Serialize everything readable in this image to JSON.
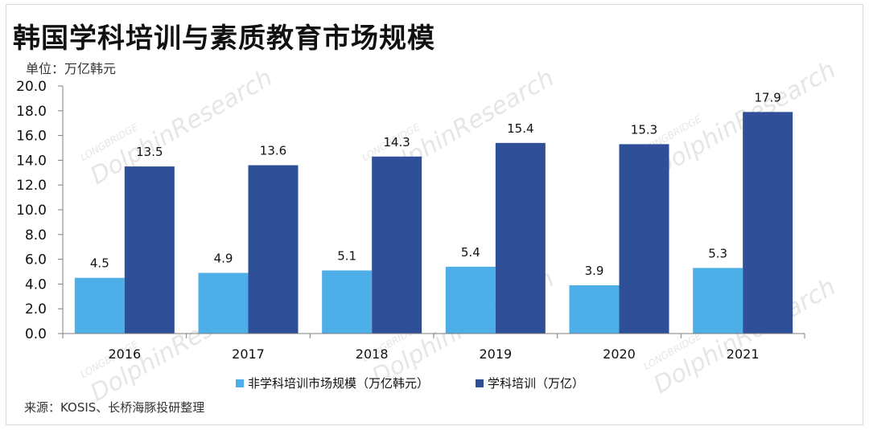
{
  "title": "韩国学科培训与素质教育市场规模",
  "unit_label": "单位：万亿韩元",
  "source": "来源：KOSIS、长桥海豚投研整理",
  "watermark": {
    "brand": "DolphinResearch",
    "sub": "LONGBRIDGE"
  },
  "colors": {
    "light": "#4eaee8",
    "dark": "#2f4f99",
    "axis": "#7f7f7f"
  },
  "chart_data": {
    "type": "bar",
    "title": "韩国学科培训与素质教育市场规模",
    "categories": [
      "2016",
      "2017",
      "2018",
      "2019",
      "2020",
      "2021"
    ],
    "series": [
      {
        "name": "非学科培训市场规模（万亿韩元）",
        "values": [
          4.5,
          4.9,
          5.1,
          5.4,
          3.9,
          5.3
        ],
        "color": "#4eaee8"
      },
      {
        "name": "学科培训（万亿）",
        "values": [
          13.5,
          13.6,
          14.3,
          15.4,
          15.3,
          17.9
        ],
        "color": "#2f4f99"
      }
    ],
    "yticks": [
      "0.0",
      "2.0",
      "4.0",
      "6.0",
      "8.0",
      "10.0",
      "12.0",
      "14.0",
      "16.0",
      "18.0",
      "20.0"
    ],
    "ylim": [
      0,
      20
    ],
    "legend_position": "bottom",
    "grid": false
  }
}
